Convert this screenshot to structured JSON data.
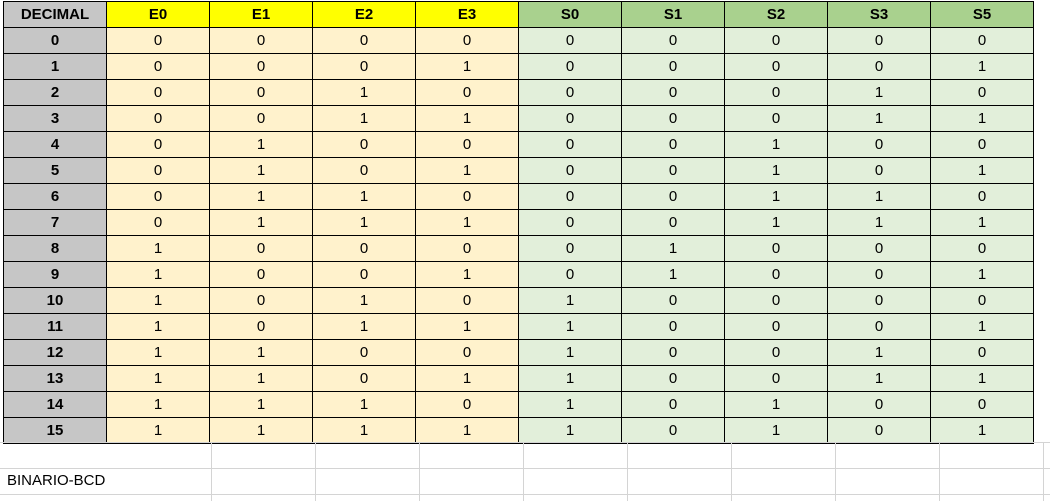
{
  "sheet": {
    "name": "BINARIO-BCD",
    "headers": {
      "decimal": "DECIMAL",
      "inputs": [
        "E0",
        "E1",
        "E2",
        "E3"
      ],
      "outputs": [
        "S0",
        "S1",
        "S2",
        "S3",
        "S5"
      ]
    },
    "rows": [
      {
        "dec": "0",
        "e": [
          "0",
          "0",
          "0",
          "0"
        ],
        "s": [
          "0",
          "0",
          "0",
          "0",
          "0"
        ]
      },
      {
        "dec": "1",
        "e": [
          "0",
          "0",
          "0",
          "1"
        ],
        "s": [
          "0",
          "0",
          "0",
          "0",
          "1"
        ]
      },
      {
        "dec": "2",
        "e": [
          "0",
          "0",
          "1",
          "0"
        ],
        "s": [
          "0",
          "0",
          "0",
          "1",
          "0"
        ]
      },
      {
        "dec": "3",
        "e": [
          "0",
          "0",
          "1",
          "1"
        ],
        "s": [
          "0",
          "0",
          "0",
          "1",
          "1"
        ]
      },
      {
        "dec": "4",
        "e": [
          "0",
          "1",
          "0",
          "0"
        ],
        "s": [
          "0",
          "0",
          "1",
          "0",
          "0"
        ]
      },
      {
        "dec": "5",
        "e": [
          "0",
          "1",
          "0",
          "1"
        ],
        "s": [
          "0",
          "0",
          "1",
          "0",
          "1"
        ]
      },
      {
        "dec": "6",
        "e": [
          "0",
          "1",
          "1",
          "0"
        ],
        "s": [
          "0",
          "0",
          "1",
          "1",
          "0"
        ]
      },
      {
        "dec": "7",
        "e": [
          "0",
          "1",
          "1",
          "1"
        ],
        "s": [
          "0",
          "0",
          "1",
          "1",
          "1"
        ]
      },
      {
        "dec": "8",
        "e": [
          "1",
          "0",
          "0",
          "0"
        ],
        "s": [
          "0",
          "1",
          "0",
          "0",
          "0"
        ]
      },
      {
        "dec": "9",
        "e": [
          "1",
          "0",
          "0",
          "1"
        ],
        "s": [
          "0",
          "1",
          "0",
          "0",
          "1"
        ]
      },
      {
        "dec": "10",
        "e": [
          "1",
          "0",
          "1",
          "0"
        ],
        "s": [
          "1",
          "0",
          "0",
          "0",
          "0"
        ]
      },
      {
        "dec": "11",
        "e": [
          "1",
          "0",
          "1",
          "1"
        ],
        "s": [
          "1",
          "0",
          "0",
          "0",
          "1"
        ]
      },
      {
        "dec": "12",
        "e": [
          "1",
          "1",
          "0",
          "0"
        ],
        "s": [
          "1",
          "0",
          "0",
          "1",
          "0"
        ]
      },
      {
        "dec": "13",
        "e": [
          "1",
          "1",
          "0",
          "1"
        ],
        "s": [
          "1",
          "0",
          "0",
          "1",
          "1"
        ]
      },
      {
        "dec": "14",
        "e": [
          "1",
          "1",
          "1",
          "0"
        ],
        "s": [
          "1",
          "0",
          "1",
          "0",
          "0"
        ]
      },
      {
        "dec": "15",
        "e": [
          "1",
          "1",
          "1",
          "1"
        ],
        "s": [
          "1",
          "0",
          "1",
          "0",
          "1"
        ]
      }
    ]
  },
  "colors": {
    "decimal_bg": "#c6c6c6",
    "input_header_bg": "#ffff00",
    "input_cell_bg": "#fff2cc",
    "output_header_bg": "#a9d18e",
    "output_cell_bg": "#e2efda"
  }
}
